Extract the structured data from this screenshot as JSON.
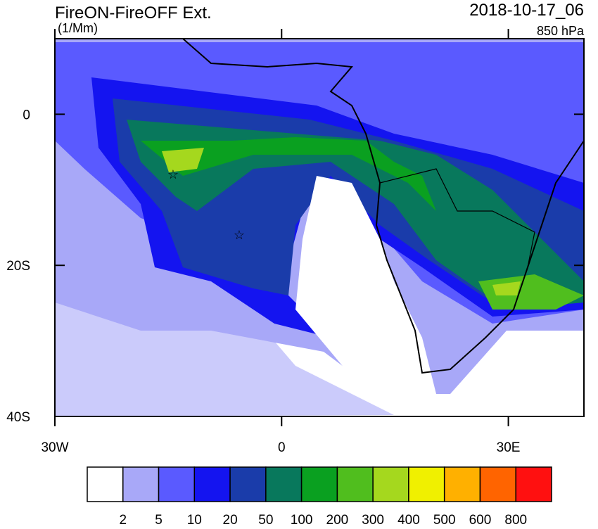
{
  "header": {
    "title": "FireON-FireOFF Ext.",
    "units": "(1/Mm)",
    "date": "2018-10-17_06",
    "level": "850 hPa"
  },
  "map": {
    "lon_range": [
      -30,
      40
    ],
    "lat_range": [
      -40,
      10
    ],
    "lat_ticks": [
      {
        "value": 0,
        "label": "0"
      },
      {
        "value": -20,
        "label": "20S"
      },
      {
        "value": -40,
        "label": "40S"
      }
    ],
    "lon_ticks": [
      {
        "value": -30,
        "label": "30W"
      },
      {
        "value": 0,
        "label": "0"
      },
      {
        "value": 30,
        "label": "30E"
      }
    ]
  },
  "colorbar": {
    "levels": [
      2,
      5,
      10,
      20,
      50,
      100,
      200,
      300,
      400,
      500,
      600,
      800
    ],
    "colors": [
      "#ffffff",
      "#a8a8f8",
      "#5a5aff",
      "#1414f0",
      "#1a3caa",
      "#08785c",
      "#0aa020",
      "#50be1e",
      "#a5d81e",
      "#f0f000",
      "#ffb000",
      "#ff6400",
      "#ff1010"
    ]
  }
}
